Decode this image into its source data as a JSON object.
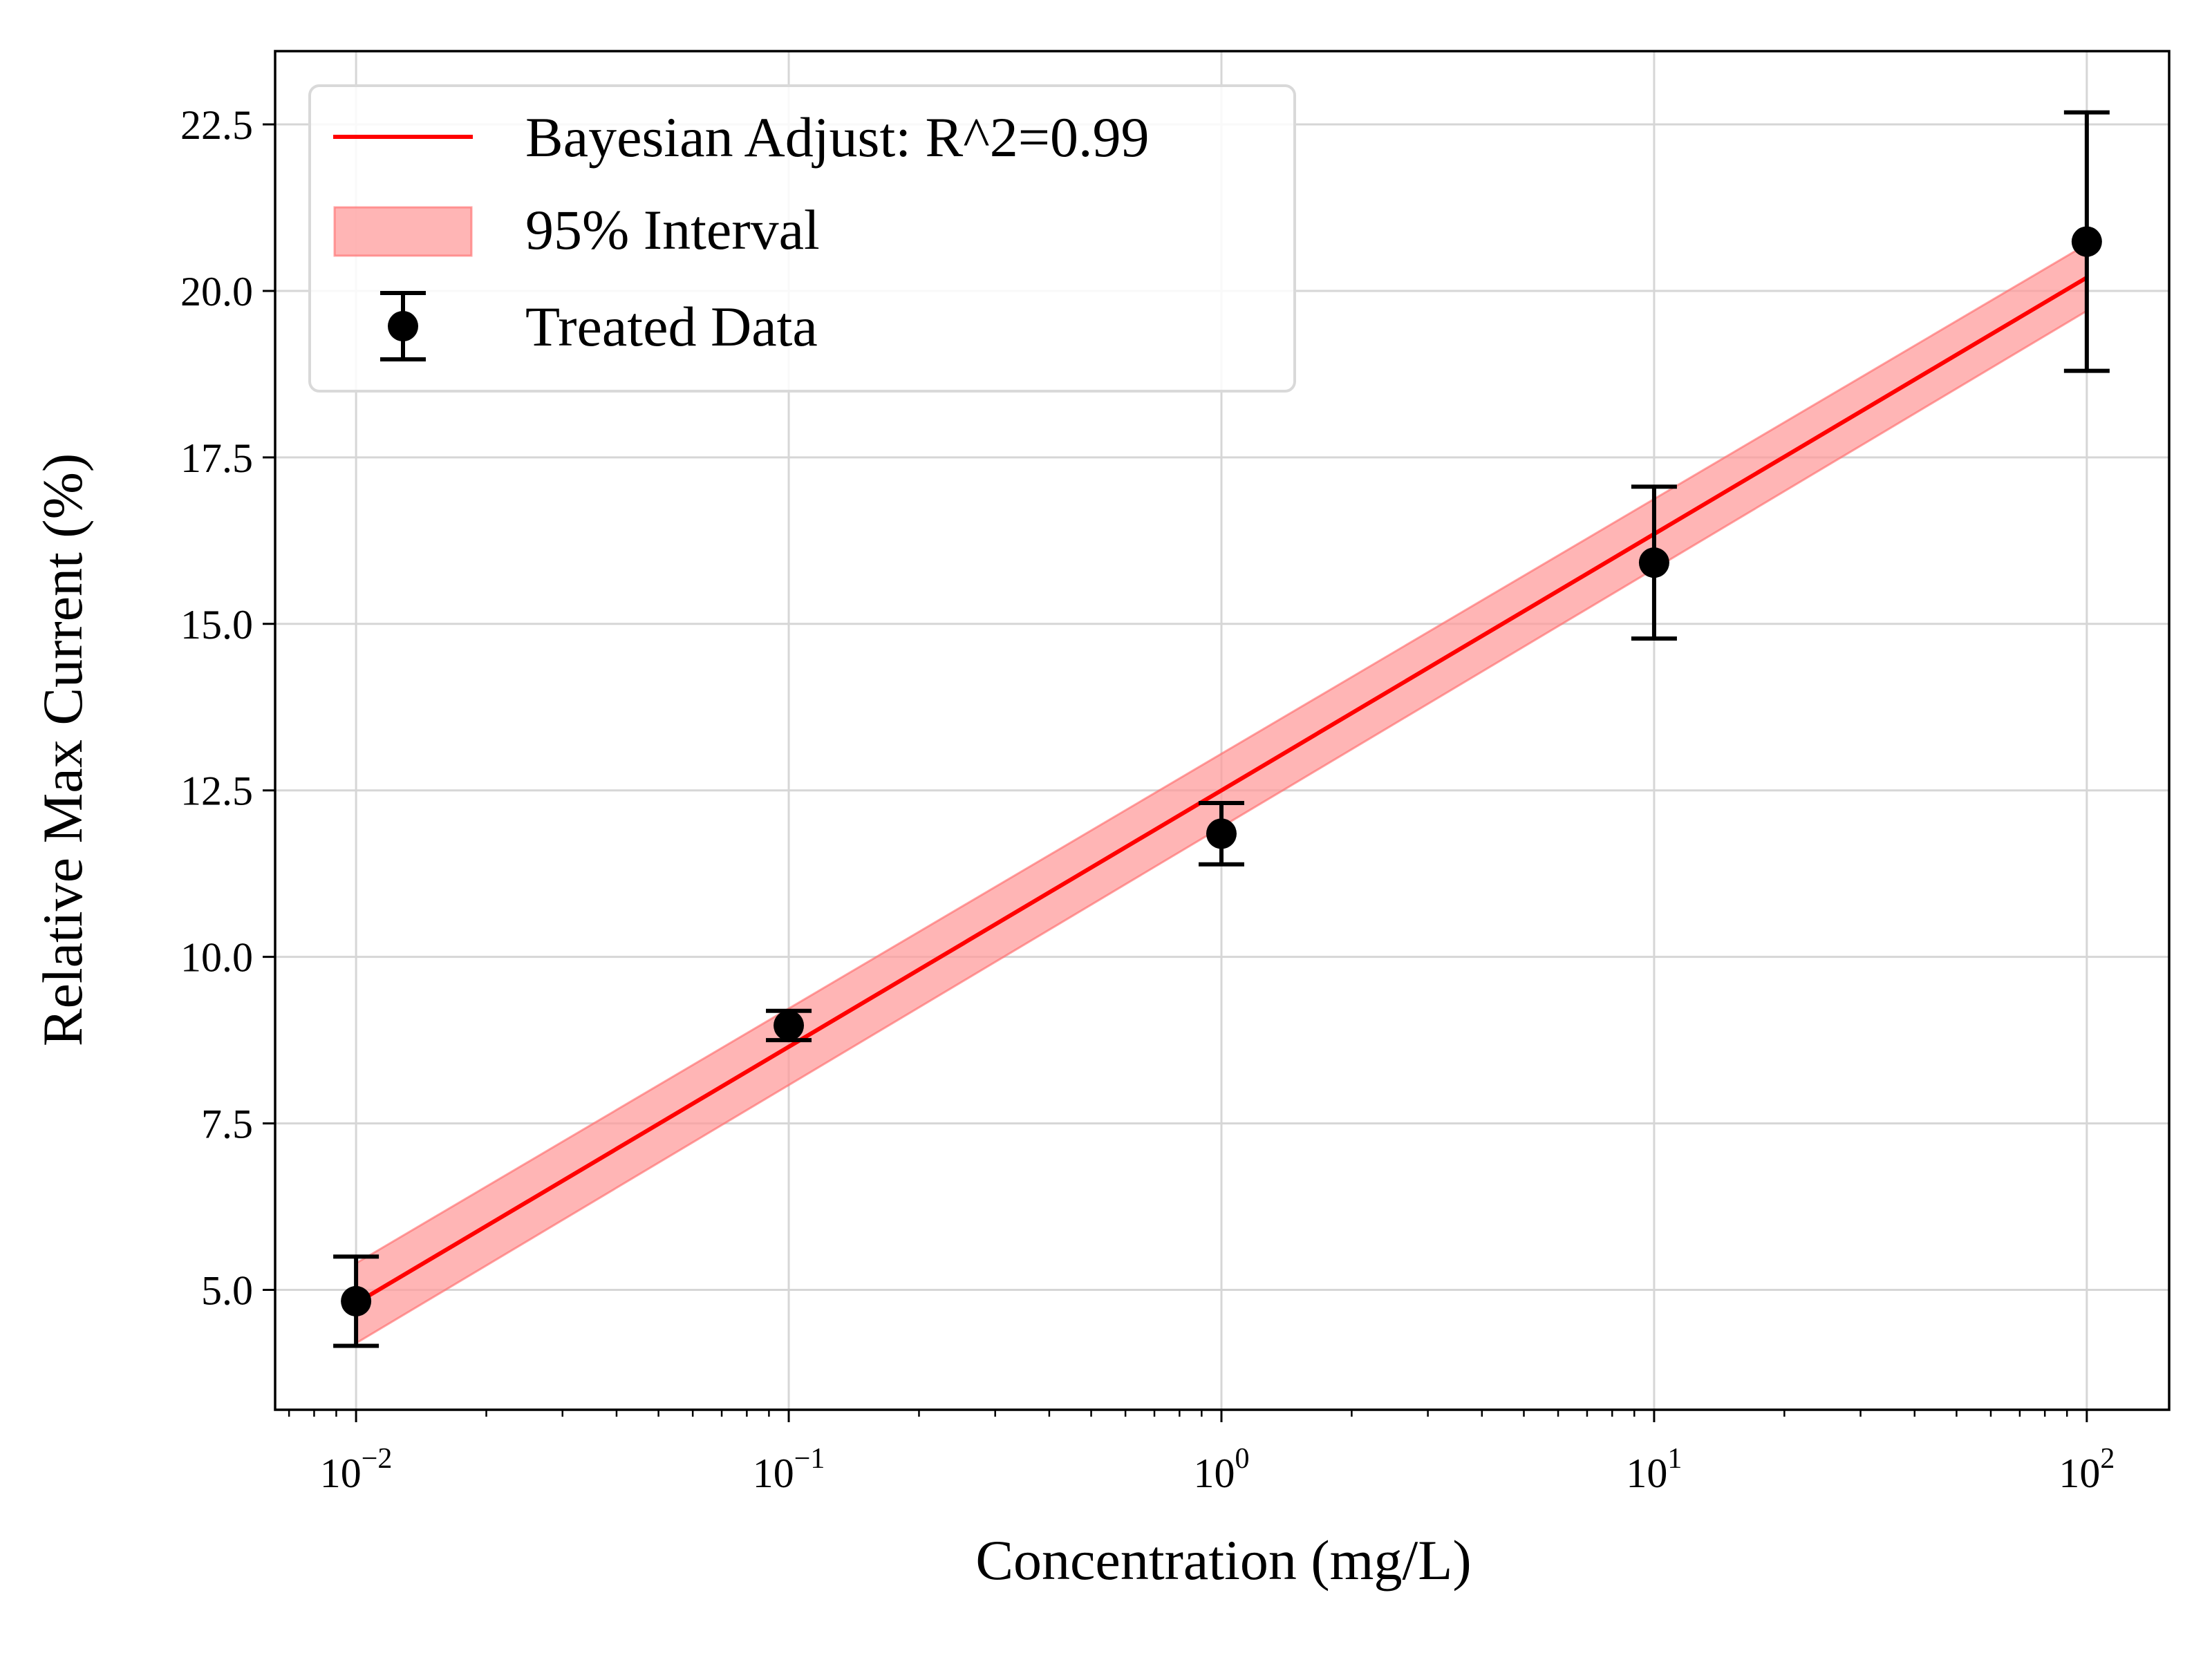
{
  "chart_data": {
    "type": "line",
    "xlabel": "Concentration (mg/L)",
    "ylabel": "Relative Max Current (%)",
    "x_scale": "log",
    "xlim": [
      0.0065,
      155
    ],
    "ylim": [
      3.2,
      23.6
    ],
    "grid": true,
    "legend_position": "top-left",
    "x_ticks": [
      {
        "value": 0.01,
        "base": "10",
        "exp": "−2"
      },
      {
        "value": 0.1,
        "base": "10",
        "exp": "−1"
      },
      {
        "value": 1,
        "base": "10",
        "exp": "0"
      },
      {
        "value": 10,
        "base": "10",
        "exp": "1"
      },
      {
        "value": 100,
        "base": "10",
        "exp": "2"
      }
    ],
    "y_ticks": [
      {
        "value": 5.0,
        "label": "5.0"
      },
      {
        "value": 7.5,
        "label": "7.5"
      },
      {
        "value": 10.0,
        "label": "10.0"
      },
      {
        "value": 12.5,
        "label": "12.5"
      },
      {
        "value": 15.0,
        "label": "15.0"
      },
      {
        "value": 17.5,
        "label": "17.5"
      },
      {
        "value": 20.0,
        "label": "20.0"
      },
      {
        "value": 22.5,
        "label": "22.5"
      }
    ],
    "series": [
      {
        "name": "Bayesian Adjust: R^2=0.99",
        "kind": "line",
        "color": "#ff0000",
        "x": [
          0.01,
          100
        ],
        "y": [
          4.8,
          20.2
        ]
      },
      {
        "name": "95% Interval",
        "kind": "band",
        "color": "#ff9999",
        "x": [
          0.01,
          100
        ],
        "lower": [
          4.2,
          19.7
        ],
        "upper": [
          5.4,
          20.7
        ]
      },
      {
        "name": "Treated Data",
        "kind": "errorbar",
        "color": "#000000",
        "x": [
          0.01,
          0.1,
          1,
          10,
          100
        ],
        "y": [
          4.83,
          8.97,
          11.85,
          15.92,
          20.74
        ],
        "yerr": [
          0.67,
          0.22,
          0.46,
          1.14,
          1.94
        ]
      }
    ]
  }
}
